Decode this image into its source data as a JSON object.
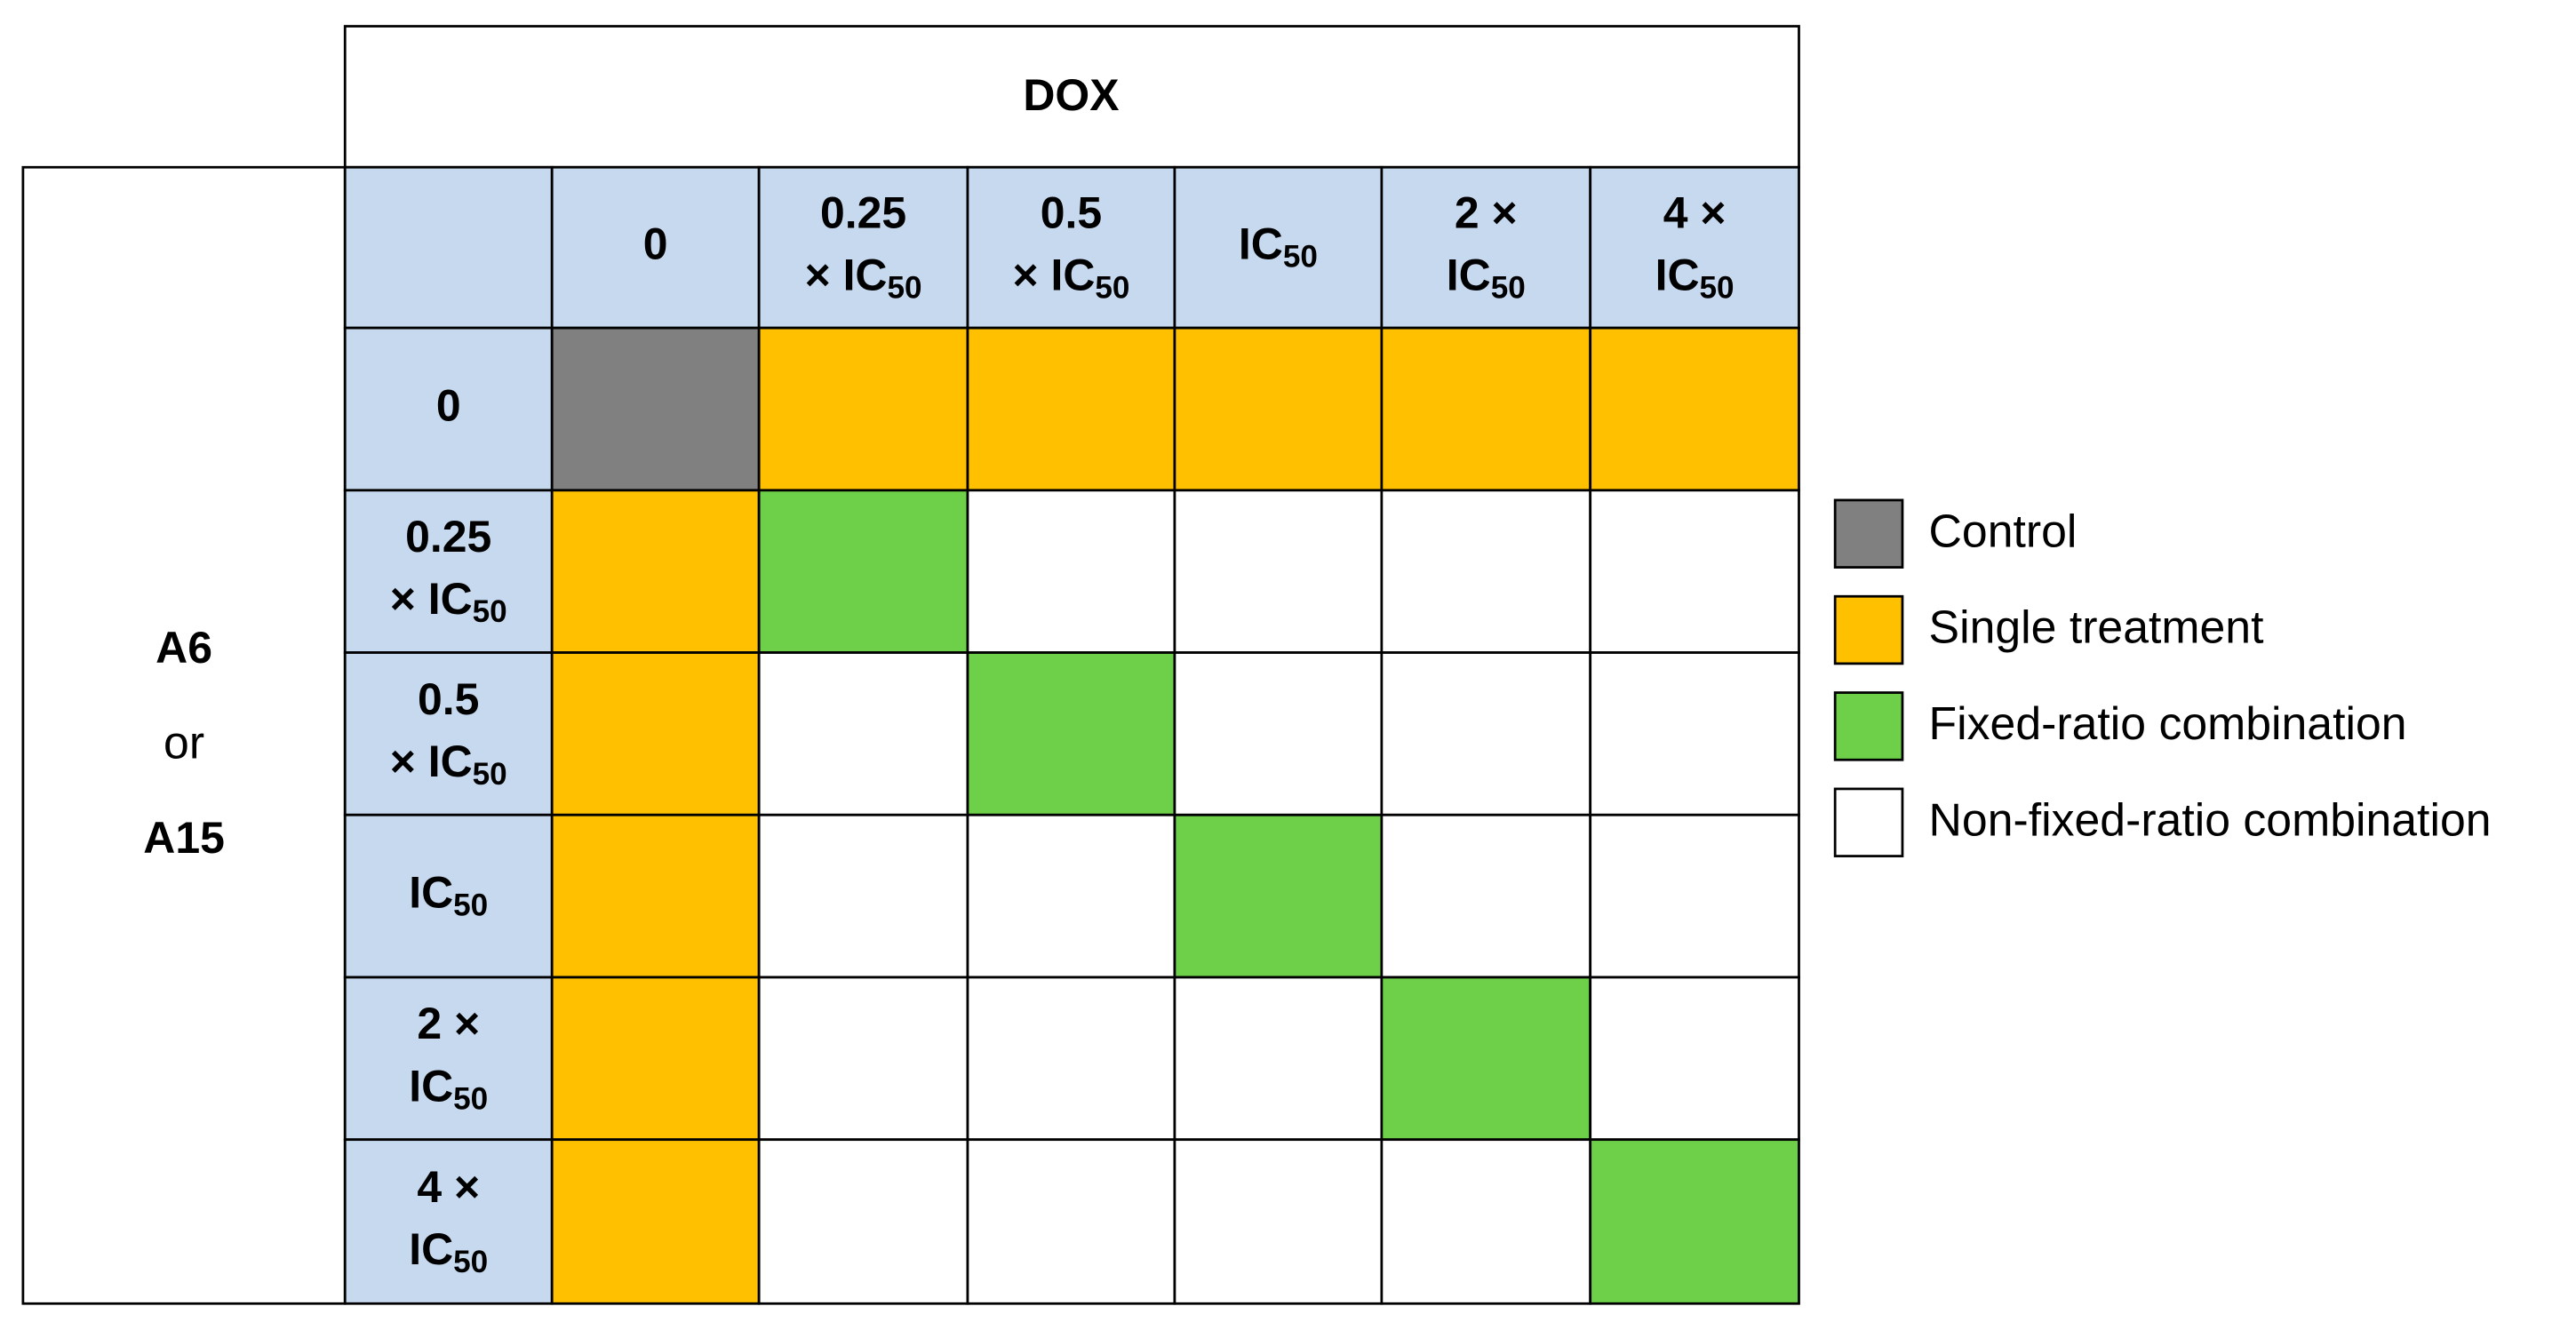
{
  "header": {
    "title": "DOX"
  },
  "side_label": [
    "A6",
    "or",
    "A15"
  ],
  "column_labels": [
    [
      {
        "text": "0"
      }
    ],
    [
      {
        "text": "0.25"
      },
      {
        "text": "× IC",
        "sub": "50"
      }
    ],
    [
      {
        "text": "0.5"
      },
      {
        "text": "× IC",
        "sub": "50"
      }
    ],
    [
      {
        "text": "IC",
        "sub": "50"
      }
    ],
    [
      {
        "text": "2 ×"
      },
      {
        "text": "IC",
        "sub": "50"
      }
    ],
    [
      {
        "text": "4 ×"
      },
      {
        "text": "IC",
        "sub": "50"
      }
    ]
  ],
  "row_labels": [
    [
      {
        "text": "0"
      }
    ],
    [
      {
        "text": "0.25"
      },
      {
        "text": "× IC",
        "sub": "50"
      }
    ],
    [
      {
        "text": "0.5"
      },
      {
        "text": "× IC",
        "sub": "50"
      }
    ],
    [
      {
        "text": "IC",
        "sub": "50"
      }
    ],
    [
      {
        "text": "2 ×"
      },
      {
        "text": "IC",
        "sub": "50"
      }
    ],
    [
      {
        "text": "4 ×"
      },
      {
        "text": "IC",
        "sub": "50"
      }
    ]
  ],
  "cells": [
    [
      "#808080",
      "#ffc000",
      "#ffc000",
      "#ffc000",
      "#ffc000",
      "#ffc000"
    ],
    [
      "#ffc000",
      "#6dd048",
      "#ffffff",
      "#ffffff",
      "#ffffff",
      "#ffffff"
    ],
    [
      "#ffc000",
      "#ffffff",
      "#6dd048",
      "#ffffff",
      "#ffffff",
      "#ffffff"
    ],
    [
      "#ffc000",
      "#ffffff",
      "#ffffff",
      "#6dd048",
      "#ffffff",
      "#ffffff"
    ],
    [
      "#ffc000",
      "#ffffff",
      "#ffffff",
      "#ffffff",
      "#6dd048",
      "#ffffff"
    ],
    [
      "#ffc000",
      "#ffffff",
      "#ffffff",
      "#ffffff",
      "#ffffff",
      "#6dd048"
    ]
  ],
  "legend": [
    {
      "name": "Control",
      "color": "#808080"
    },
    {
      "name": "Single treatment",
      "color": "#ffc000"
    },
    {
      "name": "Fixed-ratio combination",
      "color": "#6dd048"
    },
    {
      "name": "Non-fixed-ratio combination",
      "color": "#ffffff"
    }
  ]
}
